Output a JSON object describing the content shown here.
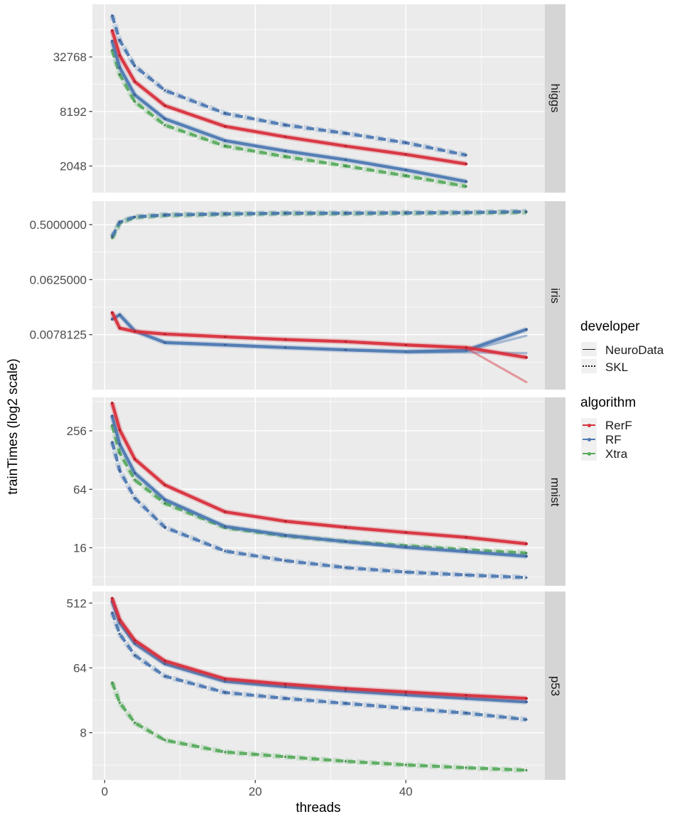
{
  "figure": {
    "x_axis": {
      "label": "threads",
      "ticks": [
        {
          "v": 0,
          "label": "0"
        },
        {
          "v": 20,
          "label": "20"
        },
        {
          "v": 40,
          "label": "40"
        }
      ],
      "minor": [
        10,
        30,
        50
      ]
    },
    "y_axis": {
      "label": "trainTimes (log2 scale)"
    }
  },
  "legend": {
    "developer_title": "developer",
    "developer_items": [
      {
        "label": "NeuroData",
        "line": "solid"
      },
      {
        "label": "SKL",
        "line": "dashed"
      }
    ],
    "algorithm_title": "algorithm",
    "algorithm_items": [
      {
        "label": "RerF",
        "color_key": "rerf"
      },
      {
        "label": "RF",
        "color_key": "rf"
      },
      {
        "label": "Xtra",
        "color_key": "xtra"
      }
    ]
  },
  "colors": {
    "rerf": "#D8323E",
    "rf": "#4E79B2",
    "xtra": "#57AB5D",
    "rerf_dot": "#A9202B",
    "rf_dot": "#38598C",
    "xtra_dot": "#3F8447",
    "panel_bg": "#EBEBEB",
    "strip_bg": "#D5D5D5",
    "grid": "#FFFFFF",
    "tick_text": "#4D4D4D",
    "tick_mark": "#333333",
    "legend_key_bg": "#F0F0F0"
  },
  "chart_data": {
    "type": "line",
    "xlabel": "threads",
    "ylabel": "trainTimes (log2 scale)",
    "x_scale": "linear",
    "y_scale": "log2",
    "x_ticks": [
      0,
      20,
      40
    ],
    "x_minor": [
      10,
      30,
      50
    ],
    "facets": [
      {
        "name": "higgs",
        "ylim": [
          1040,
          125000
        ],
        "y_ticks": [
          {
            "v": 32768,
            "label": "32768"
          },
          {
            "v": 8192,
            "label": "8192"
          },
          {
            "v": 2048,
            "label": "2048"
          }
        ],
        "y_minor": [
          65536,
          16384,
          4096,
          1024
        ],
        "series": [
          {
            "developer": "SKL",
            "algorithm": "Xtra",
            "dash": true,
            "x": [
              1,
              2,
              4,
              8,
              16,
              24,
              32,
              40,
              48
            ],
            "y": [
              39000,
              21000,
              10500,
              5800,
              3400,
              2600,
              2050,
              1600,
              1220
            ]
          },
          {
            "developer": "SKL",
            "algorithm": "RF",
            "dash": true,
            "x": [
              1,
              2,
              4,
              8,
              16,
              24,
              32,
              40,
              48
            ],
            "y": [
              94000,
              50000,
              26000,
              14000,
              7800,
              5800,
              4700,
              3700,
              2700
            ]
          },
          {
            "developer": "NeuroData",
            "algorithm": "RF",
            "dash": false,
            "x": [
              1,
              2,
              4,
              8,
              16,
              24,
              32,
              40,
              48
            ],
            "y": [
              49000,
              25000,
              12500,
              6800,
              3900,
              3000,
              2400,
              1850,
              1380
            ]
          },
          {
            "developer": "NeuroData",
            "algorithm": "RerF",
            "dash": false,
            "x": [
              1,
              2,
              4,
              8,
              16,
              24,
              32,
              40,
              48
            ],
            "y": [
              64000,
              34000,
              17500,
              9500,
              5600,
              4300,
              3400,
              2750,
              2160
            ]
          }
        ]
      },
      {
        "name": "iris",
        "ylim": [
          0.00098,
          1.21
        ],
        "y_ticks": [
          {
            "v": 0.5,
            "label": "0.5000000"
          },
          {
            "v": 0.0625,
            "label": "0.0625000"
          },
          {
            "v": 0.0078125,
            "label": "0.0078125"
          }
        ],
        "y_minor": [
          0.1768,
          0.0221,
          0.00276
        ],
        "series": [
          {
            "developer": "SKL",
            "algorithm": "Xtra",
            "dash": true,
            "x": [
              1,
              2,
              4,
              8,
              16,
              24,
              32,
              40,
              48,
              56
            ],
            "y": [
              0.3,
              0.53,
              0.66,
              0.71,
              0.74,
              0.76,
              0.76,
              0.77,
              0.78,
              0.8
            ]
          },
          {
            "developer": "SKL",
            "algorithm": "RF",
            "dash": true,
            "x": [
              1,
              2,
              4,
              8,
              16,
              24,
              32,
              40,
              48,
              56
            ],
            "y": [
              0.32,
              0.55,
              0.67,
              0.72,
              0.75,
              0.77,
              0.77,
              0.78,
              0.79,
              0.82
            ]
          },
          {
            "developer": "NeuroData",
            "algorithm": "RF",
            "dash": false,
            "x": [
              1,
              2,
              4,
              8,
              16,
              24,
              32,
              40,
              48,
              56
            ],
            "y": [
              0.014,
              0.0165,
              0.009,
              0.0058,
              0.0053,
              0.0048,
              0.0044,
              0.0041,
              0.0043,
              0.0095
            ]
          },
          {
            "developer": "NeuroData",
            "algorithm": "RF",
            "dash": false,
            "replicate": true,
            "x": [
              40,
              48,
              56
            ],
            "y": [
              0.0041,
              0.0042,
              0.0075
            ]
          },
          {
            "developer": "NeuroData",
            "algorithm": "RF",
            "dash": false,
            "replicate": true,
            "x": [
              40,
              48,
              56
            ],
            "y": [
              0.004,
              0.004,
              0.0039
            ]
          },
          {
            "developer": "NeuroData",
            "algorithm": "RerF",
            "dash": false,
            "replicate": true,
            "x": [
              40,
              48,
              56
            ],
            "y": [
              0.0052,
              0.0047,
              0.0013
            ]
          },
          {
            "developer": "NeuroData",
            "algorithm": "RerF",
            "dash": false,
            "x": [
              1,
              2,
              4,
              8,
              16,
              24,
              32,
              40,
              48,
              56
            ],
            "y": [
              0.018,
              0.01,
              0.0088,
              0.008,
              0.0072,
              0.0065,
              0.006,
              0.0053,
              0.0048,
              0.0033
            ]
          }
        ]
      },
      {
        "name": "mnist",
        "ylim": [
          6.5,
          565
        ],
        "y_ticks": [
          {
            "v": 256,
            "label": "256"
          },
          {
            "v": 64,
            "label": "64"
          },
          {
            "v": 16,
            "label": "16"
          }
        ],
        "y_minor": [
          512,
          128,
          32,
          8
        ],
        "series": [
          {
            "developer": "SKL",
            "algorithm": "RF",
            "dash": true,
            "x": [
              1,
              2,
              4,
              8,
              16,
              24,
              32,
              40,
              48,
              56
            ],
            "y": [
              196,
              100,
              52,
              26,
              14.8,
              11.8,
              10,
              9,
              8.4,
              7.9
            ]
          },
          {
            "developer": "SKL",
            "algorithm": "Xtra",
            "dash": true,
            "x": [
              1,
              2,
              4,
              8,
              16,
              24,
              32,
              40,
              48,
              56
            ],
            "y": [
              292,
              152,
              80,
              46,
              25.8,
              21.2,
              18.6,
              16.8,
              15.3,
              14.1
            ]
          },
          {
            "developer": "NeuroData",
            "algorithm": "RF",
            "dash": false,
            "x": [
              1,
              2,
              4,
              8,
              16,
              24,
              32,
              40,
              48,
              56
            ],
            "y": [
              364,
              186,
              94,
              50,
              26.5,
              21.5,
              18.5,
              16.2,
              14.6,
              13.1
            ]
          },
          {
            "developer": "NeuroData",
            "algorithm": "RerF",
            "dash": false,
            "x": [
              1,
              2,
              4,
              8,
              16,
              24,
              32,
              40,
              48,
              56
            ],
            "y": [
              494,
              262,
              131,
              71,
              37.5,
              30,
              26,
              23,
              20.5,
              17.6
            ]
          }
        ]
      },
      {
        "name": "p53",
        "ylim": [
          1.76,
          742
        ],
        "y_ticks": [
          {
            "v": 512,
            "label": "512"
          },
          {
            "v": 64,
            "label": "64"
          },
          {
            "v": 8,
            "label": "8"
          }
        ],
        "y_minor": [
          181,
          22.6,
          2.83
        ],
        "series": [
          {
            "developer": "SKL",
            "algorithm": "Xtra",
            "dash": true,
            "x": [
              1,
              2,
              4,
              8,
              16,
              24,
              32,
              40,
              48,
              56
            ],
            "y": [
              40,
              21,
              11,
              6.3,
              4.3,
              3.7,
              3.2,
              2.85,
              2.6,
              2.4
            ]
          },
          {
            "developer": "SKL",
            "algorithm": "RF",
            "dash": true,
            "x": [
              1,
              2,
              4,
              8,
              16,
              24,
              32,
              40,
              48,
              56
            ],
            "y": [
              377,
              190,
              96,
              49,
              29,
              24,
              20.5,
              17.5,
              15,
              12.2
            ]
          },
          {
            "developer": "NeuroData",
            "algorithm": "RF",
            "dash": false,
            "x": [
              1,
              2,
              4,
              8,
              16,
              24,
              32,
              40,
              48,
              56
            ],
            "y": [
              540,
              272,
              140,
              73,
              41.5,
              35,
              30.5,
              27,
              24,
              21.5
            ]
          },
          {
            "developer": "NeuroData",
            "algorithm": "RerF",
            "dash": false,
            "x": [
              1,
              2,
              4,
              8,
              16,
              24,
              32,
              40,
              48,
              56
            ],
            "y": [
              596,
              300,
              155,
              80,
              45,
              38,
              33,
              29.5,
              26.5,
              24
            ]
          }
        ]
      }
    ]
  }
}
